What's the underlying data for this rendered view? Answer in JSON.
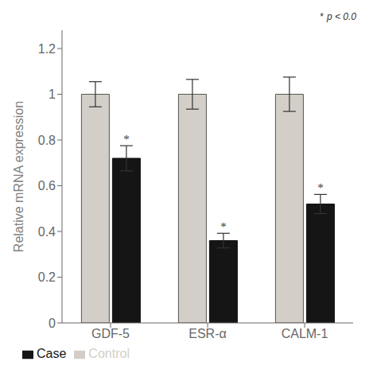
{
  "chart_data": {
    "type": "bar",
    "categories": [
      "GDF-5",
      "ESR-α",
      "CALM-1"
    ],
    "series": [
      {
        "name": "Control",
        "color": "#d3cfc8",
        "values": [
          1.0,
          1.0,
          1.0
        ],
        "errors": [
          0.055,
          0.065,
          0.075
        ]
      },
      {
        "name": "Case",
        "color": "#151515",
        "values": [
          0.72,
          0.36,
          0.52
        ],
        "errors": [
          0.055,
          0.032,
          0.042
        ],
        "significance_labels": [
          "*",
          "*",
          "*"
        ]
      }
    ],
    "ylabel": "Relative mRNA expression",
    "ylim": [
      0,
      1.28
    ],
    "yticks": [
      0,
      0.2,
      0.4,
      0.6,
      0.8,
      1.0,
      1.2
    ],
    "annotations": [
      "*",
      "p < 0.0"
    ]
  }
}
